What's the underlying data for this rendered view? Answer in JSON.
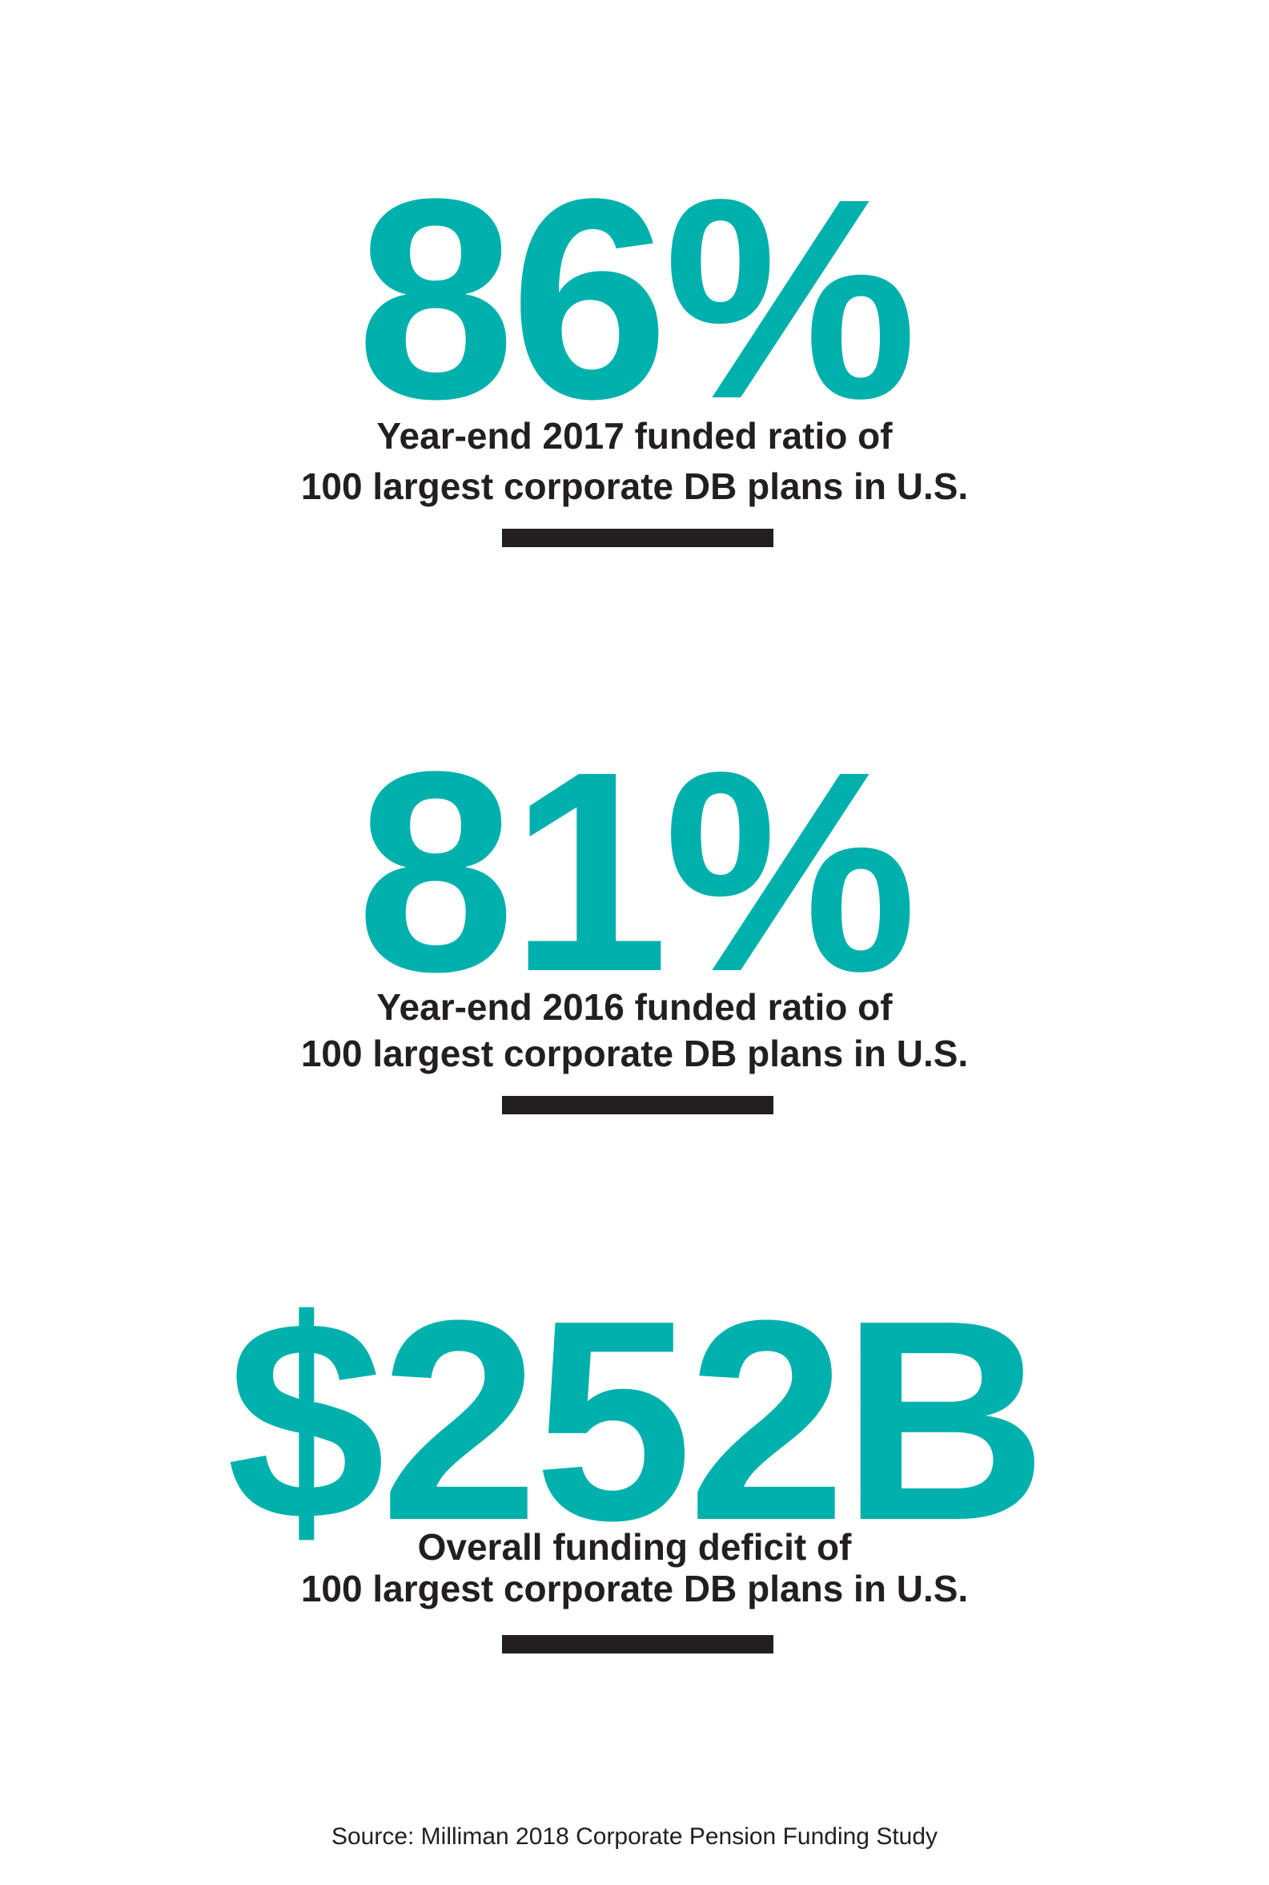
{
  "stats": [
    {
      "value": "86%",
      "caption": [
        "Year-end 2017 funded ratio of",
        "100 largest corporate DB plans in U.S."
      ]
    },
    {
      "value": "81%",
      "caption": [
        "Year-end 2016 funded ratio of",
        "100 largest corporate DB plans in U.S."
      ]
    },
    {
      "value": "$252B",
      "caption": [
        "Overall funding deficit of",
        "100 largest corporate DB plans in U.S."
      ]
    }
  ],
  "source": "Source: Milliman 2018 Corporate Pension Funding Study"
}
